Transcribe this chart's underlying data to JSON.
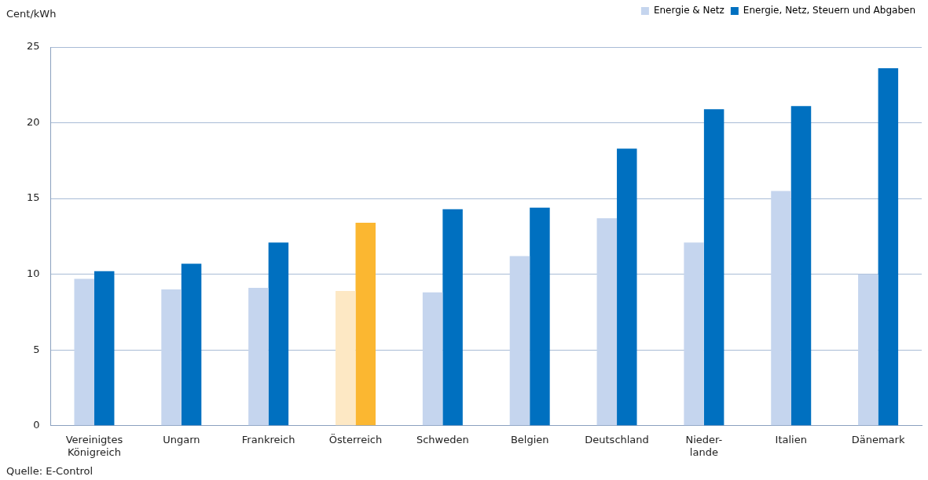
{
  "chart_data": {
    "type": "bar",
    "ylabel": "Cent/kWh",
    "categories": [
      "Vereinigtes\nKönigreich",
      "Ungarn",
      "Frankreich",
      "Österreich",
      "Schweden",
      "Belgien",
      "Deutschland",
      "Nieder-\nlande",
      "Italien",
      "Dänemark"
    ],
    "series": [
      {
        "name": "Energie & Netz",
        "color": "#c5d5ee",
        "colors": [
          "#c5d5ee",
          "#c5d5ee",
          "#c5d5ee",
          "#fde8c4",
          "#c5d5ee",
          "#c5d5ee",
          "#c5d5ee",
          "#c5d5ee",
          "#c5d5ee",
          "#c5d5ee"
        ],
        "values": [
          9.7,
          9.0,
          9.1,
          8.9,
          8.8,
          11.2,
          13.7,
          12.1,
          15.5,
          10.0
        ]
      },
      {
        "name": "Energie, Netz, Steuern und Abgaben",
        "color": "#0070c0",
        "colors": [
          "#0070c0",
          "#0070c0",
          "#0070c0",
          "#fbb731",
          "#0070c0",
          "#0070c0",
          "#0070c0",
          "#0070c0",
          "#0070c0",
          "#0070c0"
        ],
        "values": [
          10.2,
          10.7,
          12.1,
          13.4,
          14.3,
          14.4,
          18.3,
          20.9,
          21.1,
          23.6
        ]
      }
    ],
    "ylim": [
      0,
      25
    ],
    "yticks": [
      0,
      5,
      10,
      15,
      20,
      25
    ],
    "grid": "y",
    "legend": "top right",
    "annotations": [
      "Quelle: E-Control"
    ]
  }
}
